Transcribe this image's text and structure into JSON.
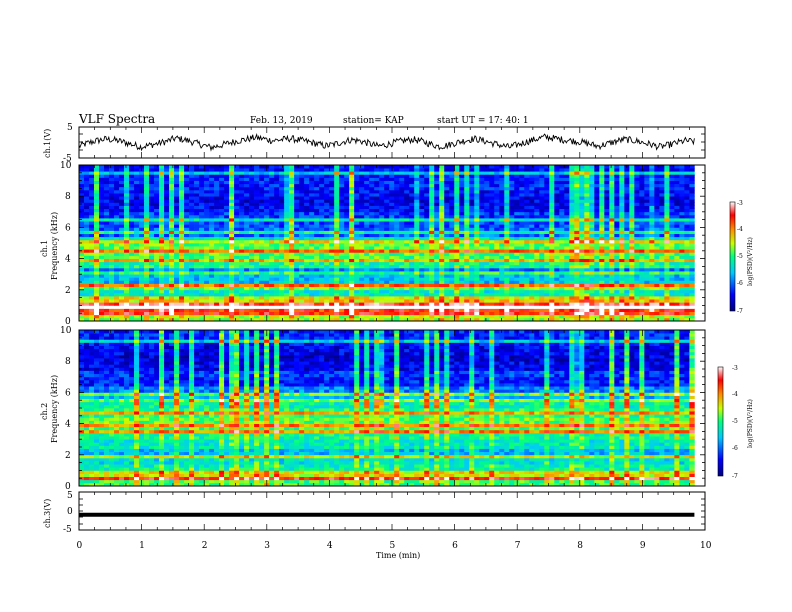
{
  "header": {
    "title": "VLF Spectra",
    "date": "Feb. 13, 2019",
    "station": "station= KAP",
    "start": "start  UT  =   17: 40: 1"
  },
  "chart_data": [
    {
      "type": "line",
      "name": "ch1-waveform",
      "ylabel": "ch.1(V)",
      "ylim": [
        -5,
        5
      ],
      "yticks": [
        "5",
        "-5"
      ],
      "xlim": [
        0,
        10
      ],
      "x_end_min": 9.83,
      "note_values": "approximate waveform envelope, volts",
      "y": [
        -1.2,
        -0.2,
        0.6,
        1.1,
        0.8,
        0.2,
        -0.6,
        -1.4,
        -0.9,
        -0.3,
        0.4,
        1.4,
        0.9,
        0.1,
        -0.8,
        -1.6,
        -1.0,
        -0.2,
        0.5,
        1.0,
        1.6,
        1.2,
        0.6,
        0.9,
        1.3,
        0.8,
        0.3,
        -0.4,
        -1.1,
        -0.6,
        0.2,
        0.9,
        0.5,
        -0.3,
        -1.2,
        -0.7,
        0.1,
        0.6,
        1.0,
        0.4,
        -0.5,
        -1.3,
        -0.8,
        0.0,
        0.7,
        1.2,
        0.6,
        -0.2,
        -0.9,
        -1.5,
        -0.6,
        0.3,
        1.1,
        1.8,
        1.4,
        0.9,
        0.6,
        0.2,
        -0.4,
        -1.2,
        -0.5,
        0.3,
        1.0,
        0.7,
        0.1,
        -0.6,
        -1.4,
        -0.9,
        -0.1,
        0.6,
        0.3
      ]
    },
    {
      "type": "heatmap",
      "name": "ch1-spectrogram",
      "ylabel_line1": "ch.1",
      "ylabel_line2": "Frequency (kHz)",
      "ylim": [
        0,
        10
      ],
      "yticks": [
        "0",
        "2",
        "4",
        "6",
        "8",
        "10"
      ],
      "xlim": [
        0,
        10
      ],
      "x_end_min": 9.83,
      "frequency_kHz": [
        0.25,
        0.75,
        1.25,
        1.75,
        2.25,
        2.75,
        3.25,
        3.75,
        4.25,
        4.75,
        5.25,
        5.75,
        6.25,
        6.75,
        7.25,
        7.75,
        8.25,
        8.75,
        9.25,
        9.75
      ],
      "mean_log_psd": [
        -4.6,
        -3.6,
        -4.3,
        -5.3,
        -4.8,
        -5.6,
        -5.9,
        -5.1,
        -4.9,
        -4.8,
        -5.3,
        -6.0,
        -6.1,
        -6.2,
        -6.4,
        -6.5,
        -6.4,
        -6.3,
        -6.3,
        -6.4
      ],
      "bright_lines_kHz": [
        0.85,
        1.15,
        1.55,
        2.25,
        3.05,
        3.85,
        4.45,
        5.15,
        5.75,
        6.45,
        9.55
      ]
    },
    {
      "type": "heatmap",
      "name": "ch2-spectrogram",
      "ylabel_line1": "ch.2",
      "ylabel_line2": "Frequency (kHz)",
      "ylim": [
        0,
        10
      ],
      "yticks": [
        "0",
        "2",
        "4",
        "6",
        "8",
        "10"
      ],
      "xlim": [
        0,
        10
      ],
      "x_end_min": 9.83,
      "frequency_kHz": [
        0.25,
        0.75,
        1.25,
        1.75,
        2.25,
        2.75,
        3.25,
        3.75,
        4.25,
        4.75,
        5.25,
        5.75,
        6.25,
        6.75,
        7.25,
        7.75,
        8.25,
        8.75,
        9.25,
        9.75
      ],
      "mean_log_psd": [
        -4.9,
        -4.4,
        -5.2,
        -5.4,
        -5.6,
        -5.3,
        -5.1,
        -4.9,
        -4.8,
        -5.0,
        -5.2,
        -5.6,
        -5.9,
        -6.3,
        -6.2,
        -6.5,
        -6.6,
        -6.5,
        -6.4,
        -6.3
      ],
      "bright_lines_kHz": [
        0.55,
        1.95,
        3.45,
        3.95,
        4.65,
        5.45,
        5.95,
        9.35
      ]
    },
    {
      "type": "line",
      "name": "ch3-waveform",
      "ylabel": "ch.3(V)",
      "ylim": [
        -5,
        5
      ],
      "yticks": [
        "5",
        "0",
        "-5"
      ],
      "xlim": [
        0,
        10
      ],
      "x_end_min": 9.83,
      "y_constant": -1.0
    }
  ],
  "colorbar": {
    "label": "log(PSD)(V²/Hz)",
    "range": [
      -7,
      -3
    ],
    "ticks": [
      "-3",
      "-4",
      "-5",
      "-6",
      "-7"
    ],
    "colors": [
      "#00007f",
      "#0000ff",
      "#00c8ff",
      "#00ff80",
      "#c8ff00",
      "#ff8c00",
      "#ff0000",
      "#ffffff"
    ]
  },
  "xaxis": {
    "label": "Time  (min)",
    "ticks": [
      "0",
      "1",
      "2",
      "3",
      "4",
      "5",
      "6",
      "7",
      "8",
      "9",
      "10"
    ]
  }
}
